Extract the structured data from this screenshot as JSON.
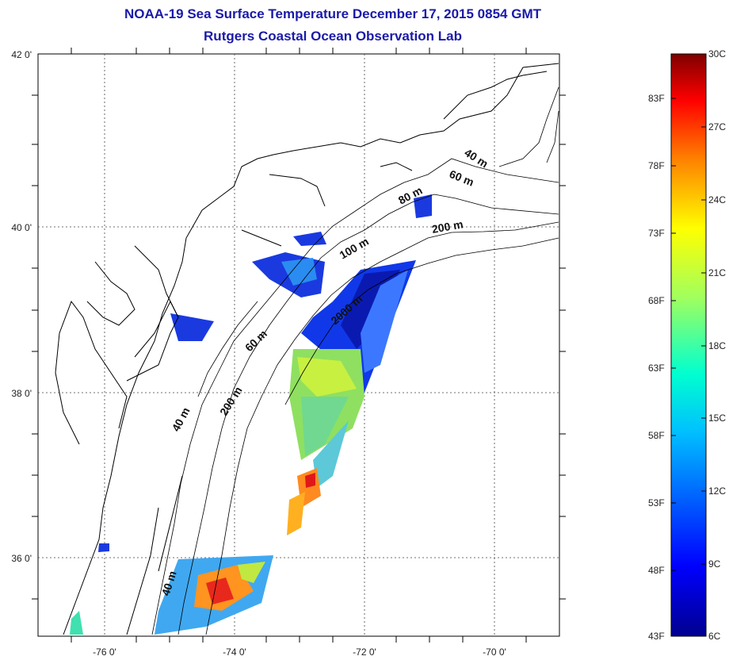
{
  "header": {
    "title": "NOAA-19 Sea Surface Temperature December 17, 2015 0854 GMT",
    "subtitle": "Rutgers Coastal Ocean Observation Lab"
  },
  "map": {
    "lat_labels": [
      "42 0'",
      "40 0'",
      "38 0'",
      "36 0'"
    ],
    "lon_labels": [
      "-76 0'",
      "-74 0'",
      "-72 0'",
      "-70 0'"
    ],
    "contour_labels": [
      "40 m",
      "60 m",
      "80 m",
      "200 m",
      "100 m",
      "2000 m",
      "60 m",
      "200 m",
      "40 m",
      "40 m"
    ]
  },
  "colorbar": {
    "fahrenheit_labels": [
      "83F",
      "78F",
      "73F",
      "68F",
      "63F",
      "58F",
      "53F",
      "48F",
      "43F"
    ],
    "celsius_labels": [
      "30C",
      "27C",
      "24C",
      "21C",
      "18C",
      "15C",
      "12C",
      "9C",
      "6C"
    ],
    "colors": [
      "#7f0000",
      "#ff0000",
      "#ff7f00",
      "#ffff00",
      "#7fff7f",
      "#00ffff",
      "#007fff",
      "#0000ff",
      "#00007f"
    ]
  }
}
